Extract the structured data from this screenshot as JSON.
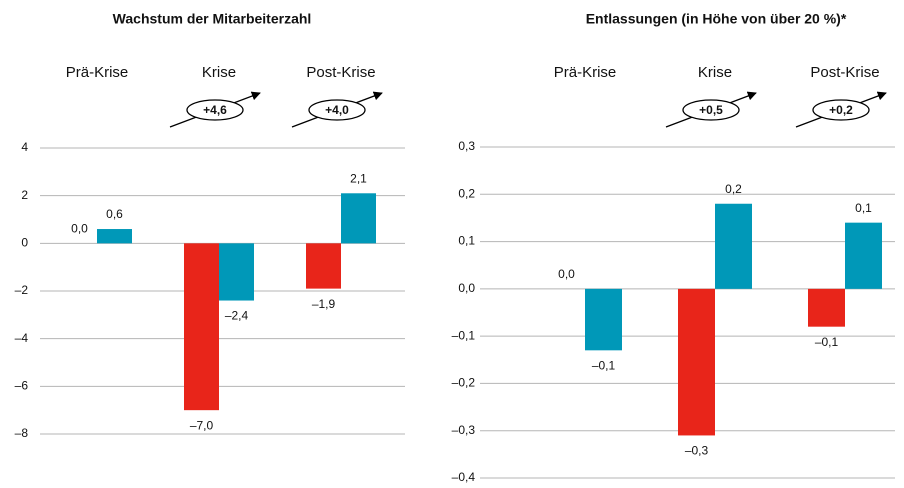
{
  "chart_data": [
    {
      "type": "bar",
      "title": "Wachstum der Mitarbeiterzahl",
      "categories": [
        "Prä-Krise",
        "Krise",
        "Post-Krise"
      ],
      "series": [
        {
          "color": "#e8251a",
          "values": [
            0.0,
            -7.0,
            -1.9
          ],
          "value_labels": [
            "0,0",
            "–7,0",
            "–1,9"
          ]
        },
        {
          "color": "#0098b8",
          "values": [
            0.6,
            -2.4,
            2.1
          ],
          "value_labels": [
            "0,6",
            "–2,4",
            "2,1"
          ]
        }
      ],
      "annotations": [
        "+4,6",
        "+4,0"
      ],
      "ylim": [
        -8,
        4
      ],
      "yticks": [
        4,
        2,
        0,
        {
          "value": -2,
          "label": "–2"
        },
        {
          "value": -4,
          "label": "–4"
        },
        {
          "value": -6,
          "label": "–6"
        },
        {
          "value": -8,
          "label": "–8"
        }
      ],
      "grid": true
    },
    {
      "type": "bar",
      "title": "Entlassungen (in Höhe von über 20 %)*",
      "categories": [
        "Prä-Krise",
        "Krise",
        "Post-Krise"
      ],
      "series": [
        {
          "color": "#e8251a",
          "values": [
            0.0,
            -0.31,
            -0.08
          ],
          "value_labels": [
            "0,0",
            "–0,3",
            "–0,1"
          ]
        },
        {
          "color": "#0098b8",
          "values": [
            -0.13,
            0.18,
            0.14
          ],
          "value_labels": [
            "–0,1",
            "0,2",
            "0,1"
          ]
        }
      ],
      "annotations": [
        "+0,5",
        "+0,2"
      ],
      "ylim": [
        -0.4,
        0.3
      ],
      "yticks": [
        {
          "value": 0.3,
          "label": "0,3"
        },
        {
          "value": 0.2,
          "label": "0,2"
        },
        {
          "value": 0.1,
          "label": "0,1"
        },
        {
          "value": 0,
          "label": "0,0"
        },
        {
          "value": -0.1,
          "label": "–0,1"
        },
        {
          "value": -0.2,
          "label": "–0,2"
        },
        {
          "value": -0.3,
          "label": "–0,3"
        },
        {
          "value": -0.4,
          "label": "–0,4"
        }
      ],
      "grid": true
    }
  ]
}
